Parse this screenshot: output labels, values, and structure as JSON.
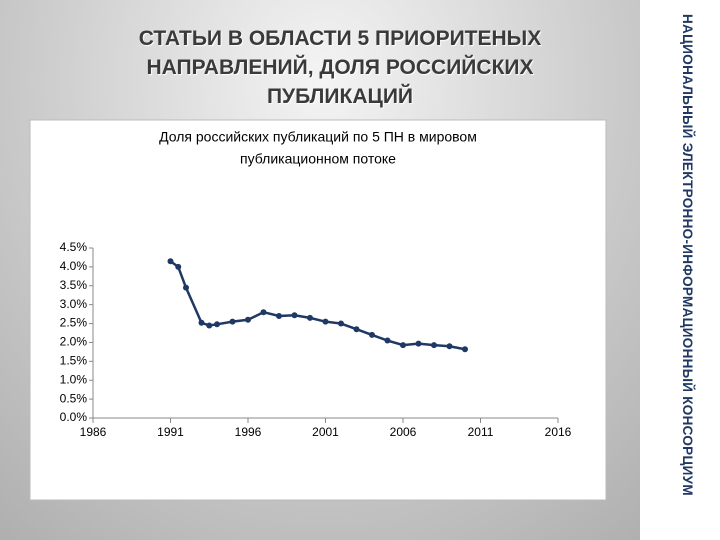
{
  "slide_title": [
    "СТАТЬИ В ОБЛАСТИ 5 ПРИОРИТЕНЫХ",
    "НАПРАВЛЕНИЙ, ДОЛЯ РОССИЙСКИХ",
    "ПУБЛИКАЦИЙ"
  ],
  "sidebar_text": "НАЦИОНАЛЬНЫЙ ЭЛЕКТРОННО-ИНФОРМАЦИОННЫЙ КОНСОРЦИУМ",
  "chart_data": {
    "type": "line",
    "title": [
      "Доля российских публикаций по 5 ПН в мировом",
      "публикационном потоке"
    ],
    "x": [
      1991,
      1991.5,
      1992,
      1993,
      1993.5,
      1994,
      1995,
      1996,
      1997,
      1998,
      1999,
      2000,
      2001,
      2002,
      2003,
      2004,
      2005,
      2006,
      2007,
      2008,
      2009,
      2010
    ],
    "series": [
      {
        "color": "#1f3864",
        "values": [
          4.15,
          4.0,
          3.45,
          2.52,
          2.45,
          2.48,
          2.55,
          2.6,
          2.8,
          2.7,
          2.72,
          2.65,
          2.55,
          2.5,
          2.35,
          2.2,
          2.05,
          1.93,
          1.97,
          1.93,
          1.9,
          1.82
        ]
      }
    ],
    "xlim": [
      1986,
      2016
    ],
    "xticks": [
      1986,
      1991,
      1996,
      2001,
      2006,
      2011,
      2016
    ],
    "ylim": [
      0,
      4.5
    ],
    "yticks": [
      {
        "value": 0,
        "label": "0.0%"
      },
      {
        "value": 0.5,
        "label": "0.5%"
      },
      {
        "value": 1,
        "label": "1.0%"
      },
      {
        "value": 1.5,
        "label": "1.5%"
      },
      {
        "value": 2,
        "label": "2.0%"
      },
      {
        "value": 2.5,
        "label": "2.5%"
      },
      {
        "value": 3,
        "label": "3.0%"
      },
      {
        "value": 3.5,
        "label": "3.5%"
      },
      {
        "value": 4,
        "label": "4.0%"
      },
      {
        "value": 4.5,
        "label": "4.5%"
      }
    ],
    "grid": false
  }
}
